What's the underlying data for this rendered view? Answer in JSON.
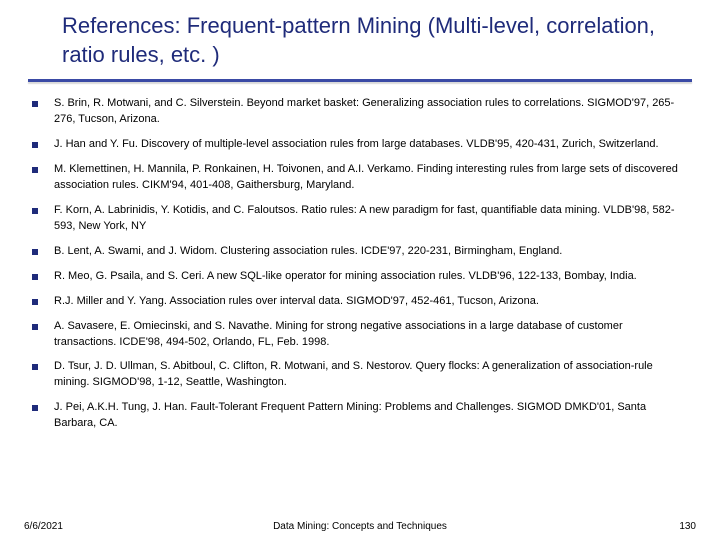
{
  "title": "References: Frequent-pattern Mining (Multi-level, correlation, ratio rules, etc. )",
  "colors": {
    "title": "#1f2b7a",
    "rule": "#3a4aa5",
    "bullet": "#1f2b7a",
    "text": "#000000",
    "background": "#ffffff"
  },
  "typography": {
    "title_fontsize": 22,
    "body_fontsize": 11,
    "footer_fontsize": 10,
    "font_family": "Verdana"
  },
  "references": [
    "S. Brin, R. Motwani, and C. Silverstein.  Beyond market basket: Generalizing association rules to correlations. SIGMOD'97, 265-276, Tucson, Arizona.",
    "J. Han and Y. Fu. Discovery of multiple-level association rules from large databases. VLDB'95, 420-431, Zurich, Switzerland.",
    "M. Klemettinen, H. Mannila, P. Ronkainen, H. Toivonen, and A.I. Verkamo. Finding interesting rules from large sets of discovered association rules. CIKM'94, 401-408, Gaithersburg, Maryland.",
    "F. Korn, A. Labrinidis, Y. Kotidis, and C. Faloutsos. Ratio rules: A new paradigm for fast, quantifiable data mining. VLDB'98, 582-593, New York, NY",
    "B. Lent, A. Swami, and J. Widom.  Clustering association rules. ICDE'97, 220-231, Birmingham, England.",
    "R. Meo, G. Psaila, and S. Ceri. A new SQL-like operator for mining association rules. VLDB'96, 122-133, Bombay, India.",
    "R.J. Miller and Y. Yang.  Association rules over interval data.  SIGMOD'97, 452-461, Tucson, Arizona.",
    "A. Savasere, E. Omiecinski, and S. Navathe. Mining for strong negative associations in a large database of customer transactions. ICDE'98, 494-502, Orlando, FL, Feb. 1998.",
    "D. Tsur, J. D. Ullman, S. Abitboul, C. Clifton, R. Motwani, and S. Nestorov. Query flocks:  A generalization of association-rule mining. SIGMOD'98, 1-12, Seattle, Washington.",
    "J. Pei, A.K.H. Tung, J. Han. Fault-Tolerant Frequent Pattern Mining:  Problems and Challenges. SIGMOD DMKD'01, Santa Barbara, CA."
  ],
  "footer": {
    "date": "6/6/2021",
    "center": "Data Mining: Concepts and Techniques",
    "page": "130"
  }
}
